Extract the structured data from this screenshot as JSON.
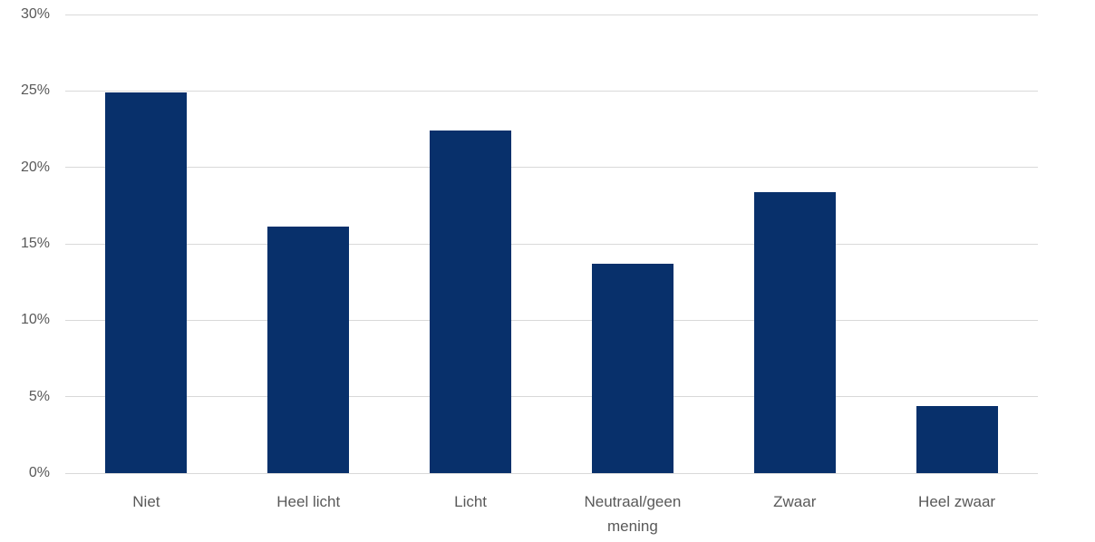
{
  "chart": {
    "background_color": "#FFFFFF"
  },
  "chart_data": {
    "type": "bar",
    "title": "",
    "xlabel": "",
    "ylabel": "",
    "categories": [
      "Niet",
      "Heel licht",
      "Licht",
      "Neutraal/geen mening",
      "Zwaar",
      "Heel zwaar"
    ],
    "values": [
      24.9,
      16.1,
      22.4,
      13.7,
      18.4,
      4.4
    ],
    "ylim": [
      0,
      30
    ],
    "ytick_step": 5,
    "ytick_labels": [
      "0%",
      "5%",
      "10%",
      "15%",
      "20%",
      "25%",
      "30%"
    ],
    "grid": true,
    "legend": false,
    "bar_color": "#08306B",
    "gridline_color": "#D9D9D9",
    "tick_label_color": "#595959"
  }
}
